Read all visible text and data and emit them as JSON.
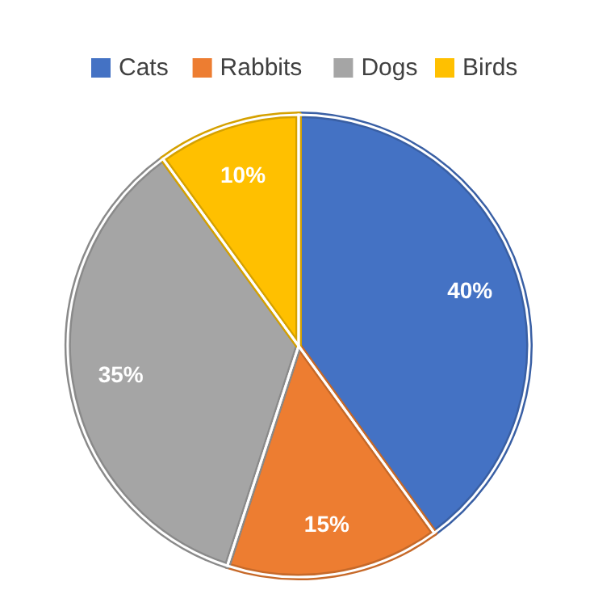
{
  "chart_data": {
    "type": "pie",
    "categories": [
      "Cats",
      "Rabbits",
      "Dogs",
      "Birds"
    ],
    "values": [
      40,
      15,
      35,
      10
    ],
    "colors": [
      "#4472c4",
      "#ed7d31",
      "#a5a5a5",
      "#ffc000"
    ],
    "value_labels": [
      "40%",
      "15%",
      "35%",
      "10%"
    ],
    "legend": "top"
  }
}
